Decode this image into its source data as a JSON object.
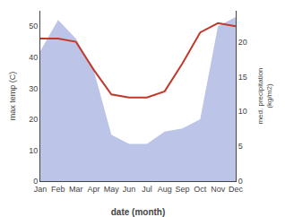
{
  "chart_data": {
    "type": "line",
    "xlabel": "date (month)",
    "ylabel": "max temp (C)",
    "y2label": "med. precipitation\n(kg/m2)",
    "categories": [
      "Jan",
      "Feb",
      "Mar",
      "Apr",
      "May",
      "Jun",
      "Jul",
      "Aug",
      "Sep",
      "Oct",
      "Nov",
      "Dec"
    ],
    "series": [
      {
        "type": "area",
        "color": "#bcc5e8",
        "values": [
          42,
          52,
          46,
          36,
          15,
          12,
          12,
          16,
          17,
          20,
          50,
          53
        ]
      },
      {
        "type": "line",
        "color": "#c0392b",
        "values": [
          46,
          46,
          45,
          36,
          28,
          27,
          27,
          29,
          38,
          48,
          51,
          50
        ]
      }
    ],
    "ylim": [
      0,
      55
    ],
    "yticks": [
      0,
      10,
      20,
      30,
      40,
      50
    ],
    "y2lim": [
      0,
      24.44
    ],
    "y2ticks": [
      0,
      5,
      10,
      15,
      20
    ],
    "grid": false
  }
}
